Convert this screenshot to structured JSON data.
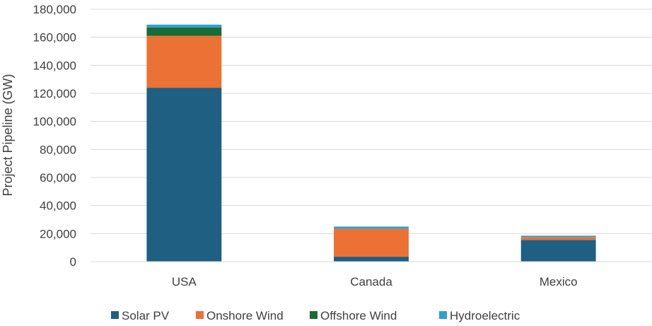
{
  "chart_data": {
    "type": "bar",
    "stacked": true,
    "title": "",
    "xlabel": "",
    "ylabel": "Project Pipeline (GW)",
    "ylim": [
      0,
      180000
    ],
    "yticks": [
      "0",
      "20,000",
      "40,000",
      "60,000",
      "80,000",
      "100,000",
      "120,000",
      "140,000",
      "160,000",
      "180,000"
    ],
    "grid": true,
    "legend": "bottom",
    "categories": [
      "USA",
      "Canada",
      "Mexico"
    ],
    "series": [
      {
        "name": "Solar PV",
        "color": "#1f5f82",
        "values": [
          124000,
          3500,
          15500
        ]
      },
      {
        "name": "Onshore Wind",
        "color": "#ec7134",
        "values": [
          37000,
          20000,
          2000
        ]
      },
      {
        "name": "Offshore Wind",
        "color": "#1a6b36",
        "values": [
          6000,
          0,
          0
        ]
      },
      {
        "name": "Hydroelectric",
        "color": "#2c9fd6",
        "values": [
          2000,
          1500,
          1000
        ]
      }
    ]
  }
}
